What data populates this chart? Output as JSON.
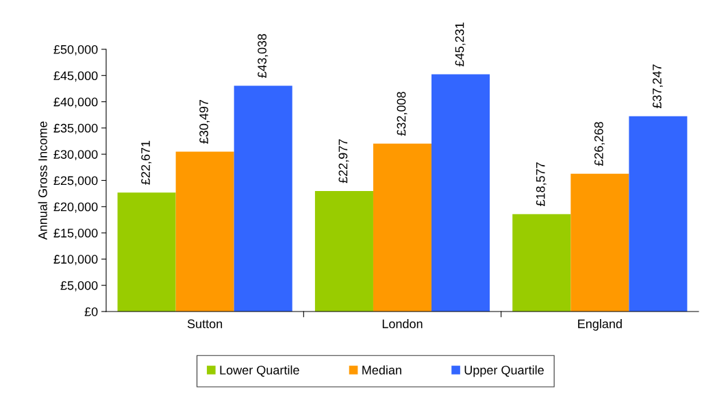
{
  "chart_data": {
    "type": "bar",
    "ylabel": "Annual Gross Income",
    "categories": [
      "Sutton",
      "London",
      "England"
    ],
    "series": [
      {
        "name": "Lower Quartile",
        "color": "#99cc00",
        "values": [
          22671,
          22977,
          18577
        ],
        "value_labels": [
          "£22,671",
          "£22,977",
          "£18,577"
        ]
      },
      {
        "name": "Median",
        "color": "#ff9900",
        "values": [
          30497,
          32008,
          26268
        ],
        "value_labels": [
          "£30,497",
          "£32,008",
          "£26,268"
        ]
      },
      {
        "name": "Upper Quartile",
        "color": "#3366ff",
        "values": [
          43038,
          45231,
          37247
        ],
        "value_labels": [
          "£43,038",
          "£45,231",
          "£37,247"
        ]
      }
    ],
    "ylim": [
      0,
      50000
    ],
    "yticks": [
      {
        "value": 0,
        "label": "£0"
      },
      {
        "value": 5000,
        "label": "£5,000"
      },
      {
        "value": 10000,
        "label": "£10,000"
      },
      {
        "value": 15000,
        "label": "£15,000"
      },
      {
        "value": 20000,
        "label": "£20,000"
      },
      {
        "value": 25000,
        "label": "£25,000"
      },
      {
        "value": 30000,
        "label": "£30,000"
      },
      {
        "value": 35000,
        "label": "£35,000"
      },
      {
        "value": 40000,
        "label": "£40,000"
      },
      {
        "value": 45000,
        "label": "£45,000"
      },
      {
        "value": 50000,
        "label": "£50,000"
      }
    ],
    "grid": false,
    "legend": "bottom"
  }
}
